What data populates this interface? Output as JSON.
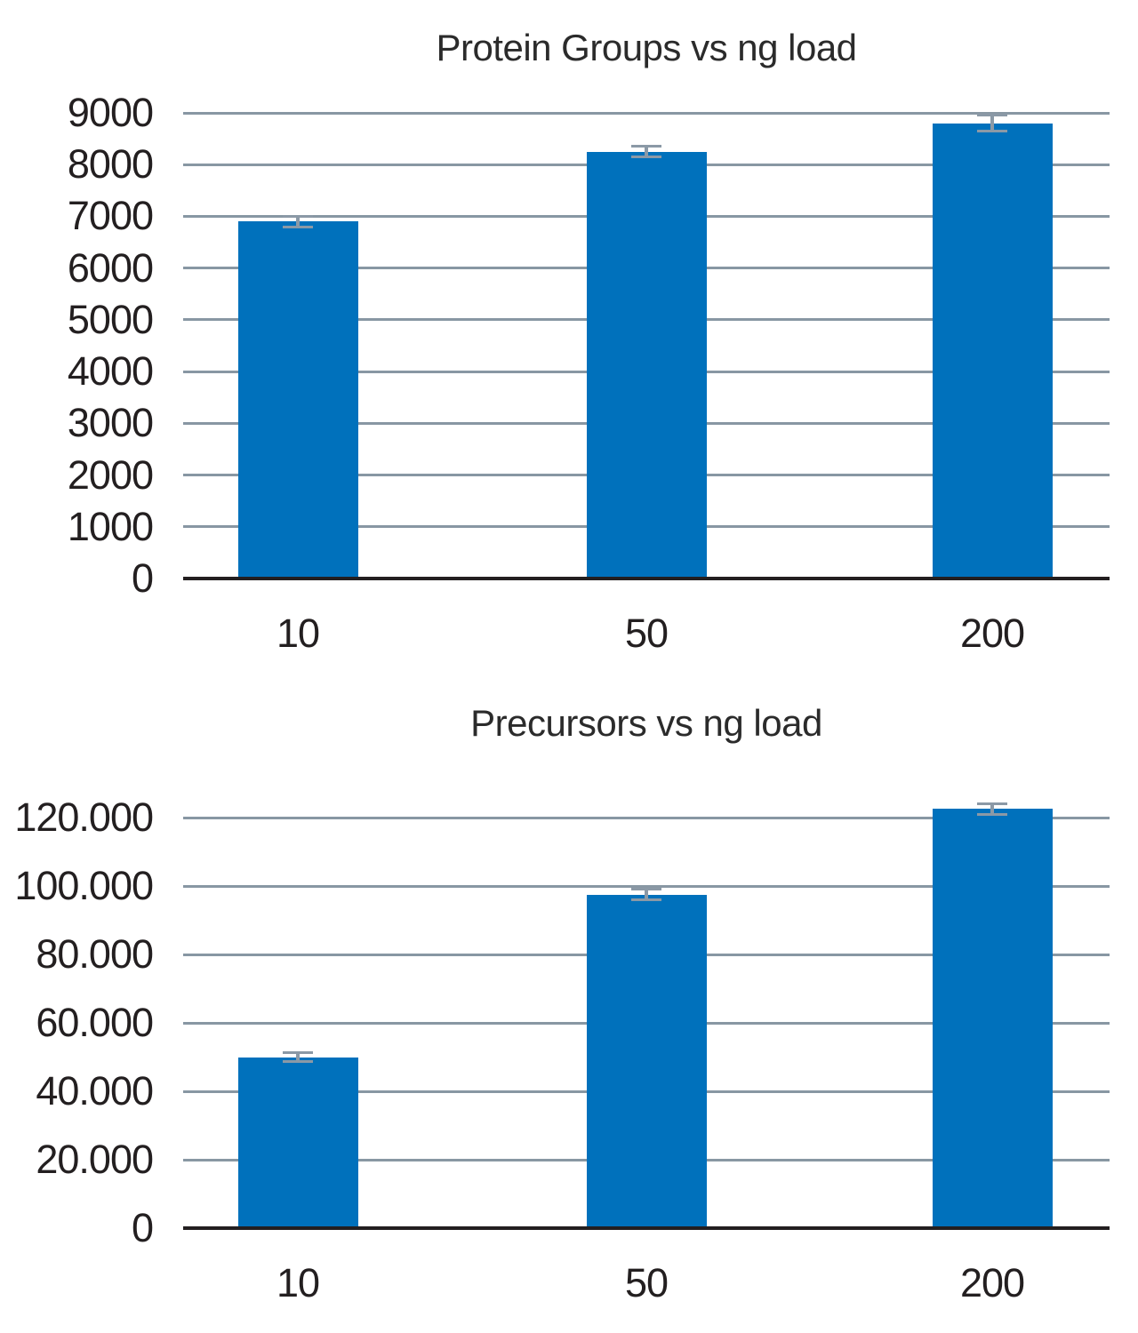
{
  "chart_data": [
    {
      "type": "bar",
      "title": "Protein Groups vs ng load",
      "xlabel": "",
      "ylabel": "",
      "categories": [
        "10",
        "50",
        "200"
      ],
      "values": [
        6900,
        8250,
        8800
      ],
      "errors": [
        100,
        100,
        150
      ],
      "ylim": [
        0,
        9000
      ],
      "y_ticks": [
        {
          "value": 0,
          "label": "0"
        },
        {
          "value": 1000,
          "label": "1000"
        },
        {
          "value": 2000,
          "label": "2000"
        },
        {
          "value": 3000,
          "label": "3000"
        },
        {
          "value": 4000,
          "label": "4000"
        },
        {
          "value": 5000,
          "label": "5000"
        },
        {
          "value": 6000,
          "label": "6000"
        },
        {
          "value": 7000,
          "label": "7000"
        },
        {
          "value": 8000,
          "label": "8000"
        },
        {
          "value": 9000,
          "label": "9000"
        }
      ],
      "grid": true,
      "legend": false
    },
    {
      "type": "bar",
      "title": "Precursors vs ng load",
      "xlabel": "",
      "ylabel": "",
      "categories": [
        "10",
        "50",
        "200"
      ],
      "values": [
        50000,
        97500,
        122500
      ],
      "errors": [
        1200,
        1500,
        1500
      ],
      "ylim": [
        0,
        120000
      ],
      "y_ticks": [
        {
          "value": 0,
          "label": "0"
        },
        {
          "value": 20000,
          "label": "20.000"
        },
        {
          "value": 40000,
          "label": "40.000"
        },
        {
          "value": 60000,
          "label": "60.000"
        },
        {
          "value": 80000,
          "label": "80.000"
        },
        {
          "value": 100000,
          "label": "100.000"
        },
        {
          "value": 120000,
          "label": "120.000"
        }
      ],
      "grid": true,
      "legend": false
    }
  ],
  "colors": {
    "bar": "#0071bc",
    "gridline": "#8897a3",
    "axis": "#231f20",
    "error_bar": "#8b99a6",
    "text": "#2b2b2b"
  }
}
